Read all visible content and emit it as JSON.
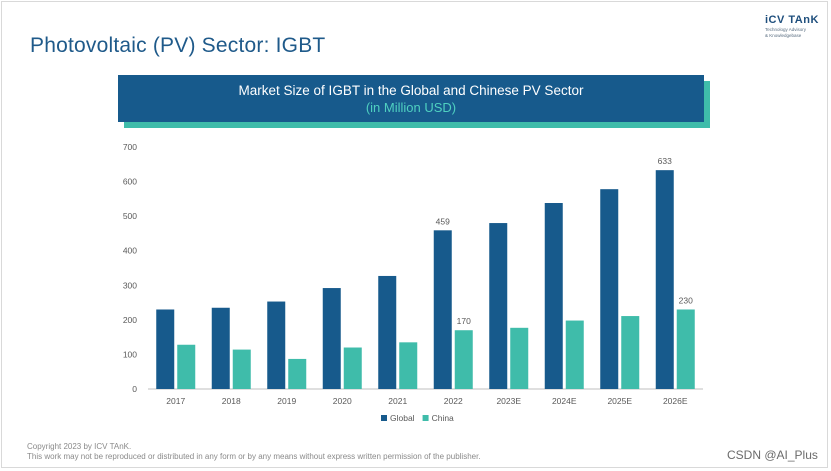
{
  "page": {
    "title": "Photovoltaic (PV) Sector: IGBT",
    "logo_name": "iCV TAnK",
    "logo_tagline_1": "Technology Advisory",
    "logo_tagline_2": "& Knowledgebase",
    "copyright_line_1": "Copyright  2023 by ICV TAnK.",
    "copyright_line_2": "This work may not be reproduced or distributed in any form or by any means without express written permission of the publisher.",
    "watermark": "CSDN @AI_Plus"
  },
  "colors": {
    "global": "#175a8c",
    "china": "#3fbcaa",
    "axis": "#bfbfbf",
    "tick_text": "#595959"
  },
  "chart_data": {
    "type": "bar",
    "title": "Market Size of IGBT in the Global and Chinese PV Sector",
    "subtitle": "(in Million USD)",
    "categories": [
      "2017",
      "2018",
      "2019",
      "2020",
      "2021",
      "2022",
      "2023E",
      "2024E",
      "2025E",
      "2026E"
    ],
    "series": [
      {
        "name": "Global",
        "values": [
          230,
          235,
          253,
          292,
          327,
          459,
          480,
          538,
          578,
          633
        ]
      },
      {
        "name": "China",
        "values": [
          128,
          114,
          87,
          120,
          135,
          170,
          177,
          198,
          211,
          230
        ]
      }
    ],
    "yticks": [
      "0",
      "100",
      "200",
      "300",
      "400",
      "500",
      "600",
      "700"
    ],
    "ylim": [
      0,
      700
    ],
    "data_labels": [
      {
        "series": "Global",
        "category": "2022",
        "text": "459"
      },
      {
        "series": "Global",
        "category": "2026E",
        "text": "633"
      },
      {
        "series": "China",
        "category": "2022",
        "text": "170"
      },
      {
        "series": "China",
        "category": "2026E",
        "text": "230"
      }
    ],
    "legend": [
      "Global",
      "China"
    ],
    "legend_position": "bottom-center",
    "xlabel": "",
    "ylabel": "",
    "grid": false
  }
}
